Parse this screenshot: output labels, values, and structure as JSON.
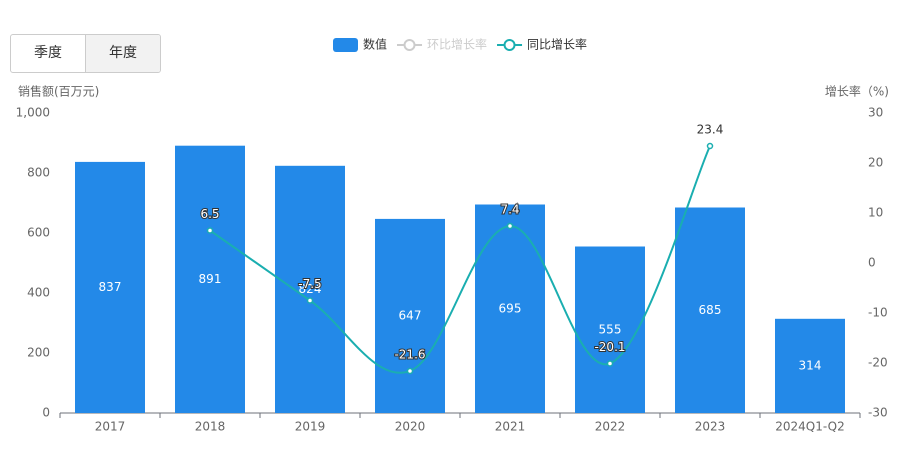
{
  "toggle": {
    "options": [
      "季度",
      "年度"
    ],
    "selected": 1
  },
  "chart_data": {
    "type": "bar",
    "categories": [
      "2017",
      "2018",
      "2019",
      "2020",
      "2021",
      "2022",
      "2023",
      "2024Q1-Q2"
    ],
    "ylabel": "销售额(百万元)",
    "y2label": "增长率（%)",
    "ylim": [
      0,
      1000
    ],
    "yticks": [
      0,
      200,
      400,
      600,
      800,
      {
        "value": 1000,
        "label": "1,000"
      }
    ],
    "y2lim": [
      -30,
      30
    ],
    "y2ticks": [
      -30,
      -20,
      -10,
      0,
      10,
      20,
      30
    ],
    "series": [
      {
        "name": "数值",
        "type": "bar",
        "color": "#2389e8",
        "values": [
          837,
          891,
          824,
          647,
          695,
          555,
          685,
          314
        ]
      },
      {
        "name": "环比增长率",
        "type": "line",
        "axis": "y2",
        "color": "#cccccc",
        "hidden": true,
        "values": [
          null,
          null,
          null,
          null,
          null,
          null,
          null,
          null
        ]
      },
      {
        "name": "同比增长率",
        "type": "line",
        "axis": "y2",
        "color": "#1aaeb0",
        "values": [
          null,
          6.5,
          -7.5,
          -21.6,
          7.4,
          -20.1,
          23.4,
          null
        ]
      }
    ]
  }
}
